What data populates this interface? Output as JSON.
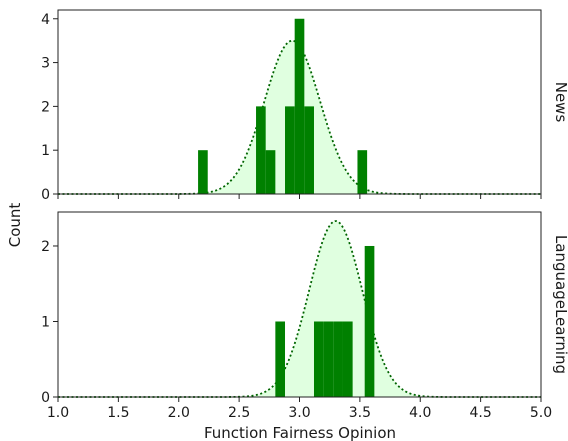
{
  "chart_data": {
    "type": "bar",
    "xlabel": "Function Fairness Opinion",
    "ylabel": "Count",
    "xlim": [
      1.0,
      5.0
    ],
    "xticks": [
      "1.0",
      "1.5",
      "2.0",
      "2.5",
      "3.0",
      "3.5",
      "4.0",
      "4.5",
      "5.0"
    ],
    "bin_width": 0.08,
    "bar_color": "#008000",
    "curve_color": "#006400",
    "fill_color": "#e0ffe0",
    "panels": [
      {
        "facet": "News",
        "ylim": [
          0,
          4.2
        ],
        "yticks": [
          "0",
          "1",
          "2",
          "3",
          "4"
        ],
        "bars": [
          {
            "x": 2.2,
            "count": 1
          },
          {
            "x": 2.68,
            "count": 2
          },
          {
            "x": 2.76,
            "count": 1
          },
          {
            "x": 2.92,
            "count": 2
          },
          {
            "x": 3.0,
            "count": 4
          },
          {
            "x": 3.08,
            "count": 2
          },
          {
            "x": 3.52,
            "count": 1
          }
        ],
        "curve": {
          "mean": 2.94,
          "sd": 0.23,
          "peak": 3.5
        }
      },
      {
        "facet": "LanguageLearning",
        "ylim": [
          0,
          2.45
        ],
        "yticks": [
          "0",
          "1",
          "2"
        ],
        "bars": [
          {
            "x": 2.84,
            "count": 1
          },
          {
            "x": 3.16,
            "count": 1
          },
          {
            "x": 3.24,
            "count": 1
          },
          {
            "x": 3.32,
            "count": 1
          },
          {
            "x": 3.4,
            "count": 1
          },
          {
            "x": 3.58,
            "count": 2
          }
        ],
        "curve": {
          "mean": 3.3,
          "sd": 0.22,
          "peak": 2.33
        }
      }
    ]
  }
}
